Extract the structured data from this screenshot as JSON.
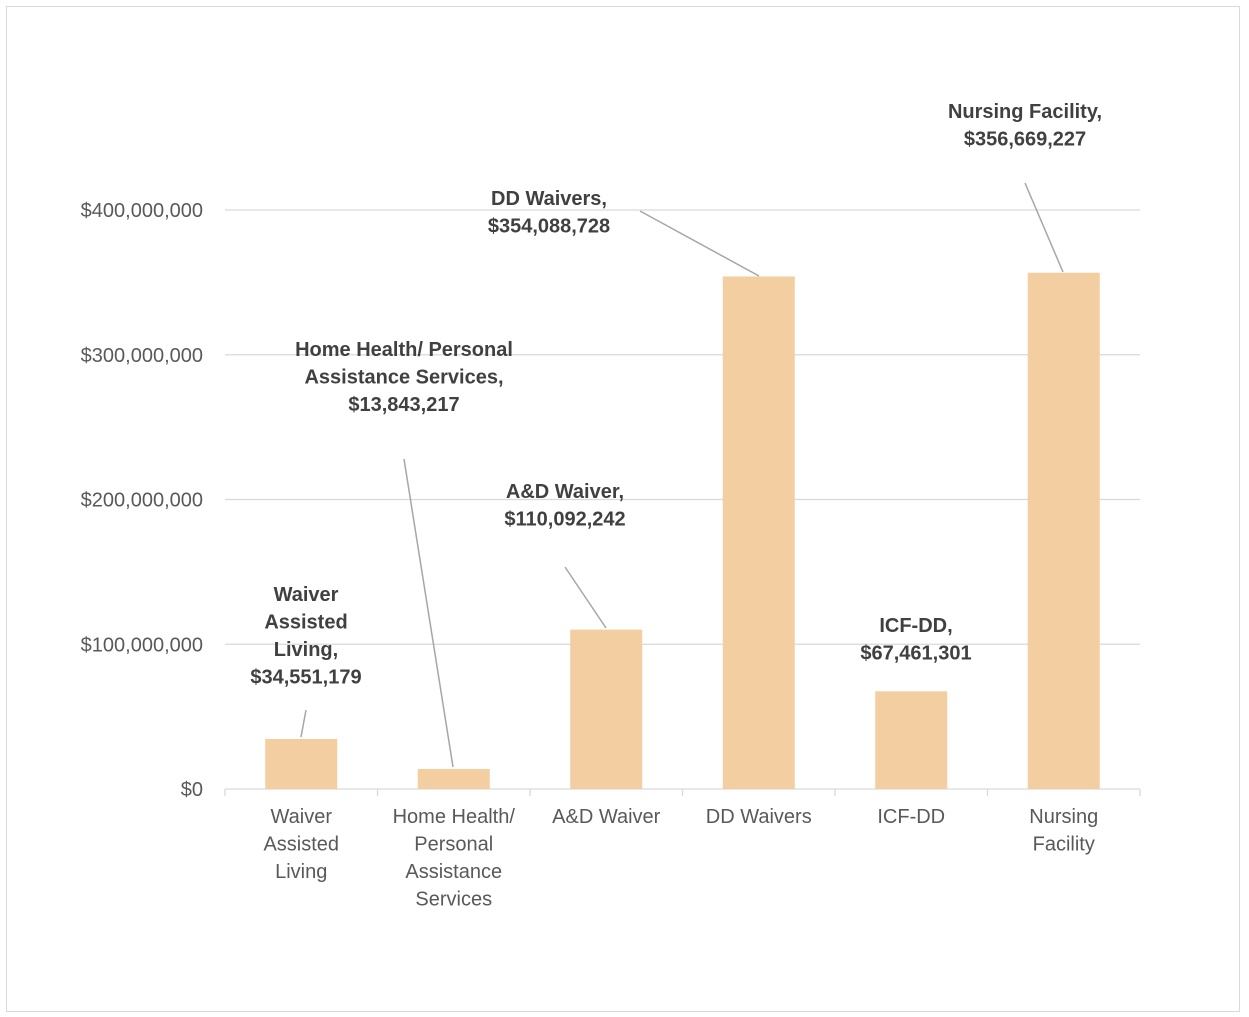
{
  "chart_data": {
    "type": "bar",
    "categories": [
      [
        "Waiver",
        "Assisted",
        "Living"
      ],
      [
        "Home Health/",
        "Personal",
        "Assistance",
        "Services"
      ],
      [
        "A&D Waiver"
      ],
      [
        "DD Waivers"
      ],
      [
        "ICF-DD"
      ],
      [
        "Nursing",
        "Facility"
      ]
    ],
    "values": [
      34551179,
      13843217,
      110092242,
      354088728,
      67461301,
      356669227
    ],
    "data_labels": [
      [
        "Waiver",
        "Assisted",
        "Living,",
        "$34,551,179"
      ],
      [
        "Home Health/ Personal",
        "Assistance Services,",
        "$13,843,217"
      ],
      [
        "A&D Waiver,",
        "$110,092,242"
      ],
      [
        "DD Waivers,",
        "$354,088,728"
      ],
      [
        "ICF-DD,",
        "$67,461,301"
      ],
      [
        "Nursing Facility,",
        "$356,669,227"
      ]
    ],
    "yticks": [
      0,
      100000000,
      200000000,
      300000000,
      400000000
    ],
    "ytick_labels": [
      "$0",
      "$100,000,000",
      "$200,000,000",
      "$300,000,000",
      "$400,000,000"
    ],
    "ylim": [
      0,
      400000000
    ],
    "grid": true,
    "legend": "none",
    "title": "",
    "xlabel": "",
    "ylabel": "",
    "colors": {
      "bar": "#f2cea0",
      "grid": "#d9d9d9",
      "leader": "#a6a6a6",
      "tick_text": "#595959",
      "label_text": "#404040"
    }
  }
}
